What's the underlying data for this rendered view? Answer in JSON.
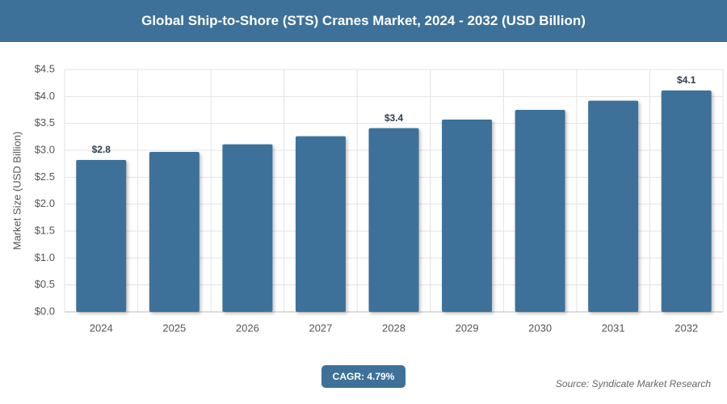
{
  "chart_data": {
    "type": "bar",
    "title": "Global Ship-to-Shore (STS) Cranes Market, 2024 - 2032 (USD Billion)",
    "y_label": "Market Size (USD Billion)",
    "categories": [
      "2024",
      "2025",
      "2026",
      "2027",
      "2028",
      "2029",
      "2030",
      "2031",
      "2032"
    ],
    "values": [
      2.82,
      2.97,
      3.11,
      3.26,
      3.41,
      3.57,
      3.75,
      3.92,
      4.11
    ],
    "value_labels": [
      "$2.8",
      null,
      null,
      null,
      "$3.4",
      null,
      null,
      null,
      "$4.1"
    ],
    "color": "#3d7199",
    "ylim": [
      0,
      4.5
    ],
    "yticks": [
      {
        "value": 0,
        "label": "$0.0"
      },
      {
        "value": 0.5,
        "label": "$0.5"
      },
      {
        "value": 1,
        "label": "$1.0"
      },
      {
        "value": 1.5,
        "label": "$1.5"
      },
      {
        "value": 2,
        "label": "$2.0"
      },
      {
        "value": 2.5,
        "label": "$2.5"
      },
      {
        "value": 3,
        "label": "$3.0"
      },
      {
        "value": 3.5,
        "label": "$3.5"
      },
      {
        "value": 4,
        "label": "$4.0"
      },
      {
        "value": 4.5,
        "label": "$4.5"
      }
    ],
    "grid": true,
    "cagr": "CAGR: 4.79%",
    "source": "Source: Syndicate Market Research"
  }
}
